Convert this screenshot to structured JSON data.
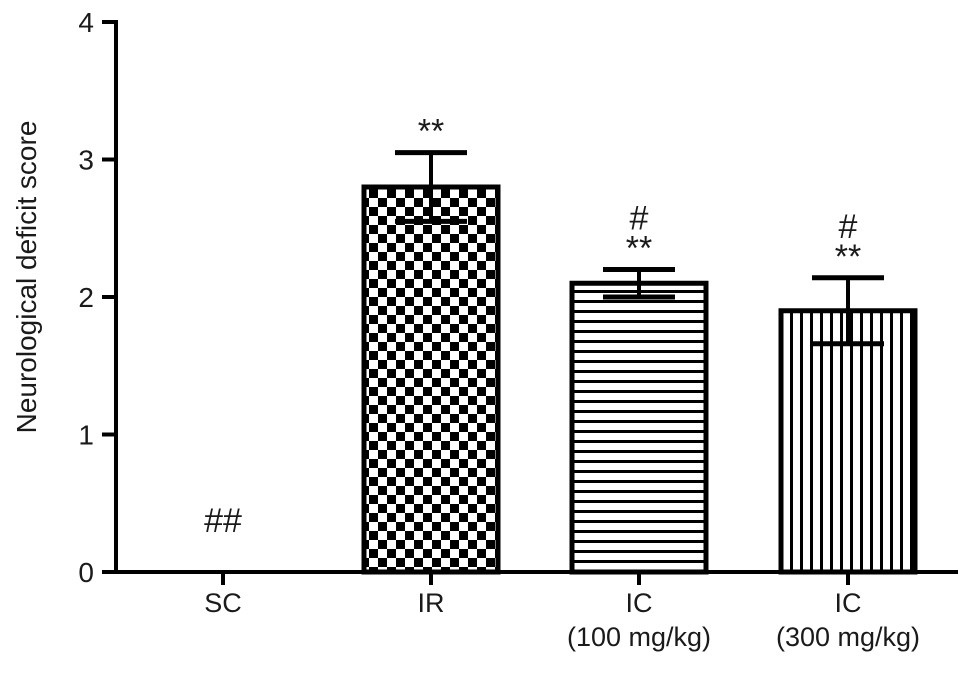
{
  "chart_data": {
    "type": "bar",
    "title": "",
    "xlabel": "",
    "ylabel": "Neurological deficit score",
    "ylim": [
      0,
      4
    ],
    "yticks": [
      "0",
      "1",
      "2",
      "3",
      "4"
    ],
    "grid": false,
    "categories": [
      [
        "SC"
      ],
      [
        "IR"
      ],
      [
        "IC",
        "(100 mg/kg)"
      ],
      [
        "IC",
        "(300 mg/kg)"
      ]
    ],
    "values": [
      0,
      2.8,
      2.1,
      1.9
    ],
    "errors": [
      0,
      0.25,
      0.1,
      0.24
    ],
    "patterns": [
      "none",
      "checkerboard",
      "horizontal-lines",
      "vertical-lines"
    ],
    "annotations": [
      [
        "##"
      ],
      [
        "**"
      ],
      [
        "#",
        "**"
      ],
      [
        "#",
        "**"
      ]
    ],
    "colors": {
      "bar_outline": "#000000",
      "fill": "#000000",
      "background": "#ffffff"
    }
  }
}
